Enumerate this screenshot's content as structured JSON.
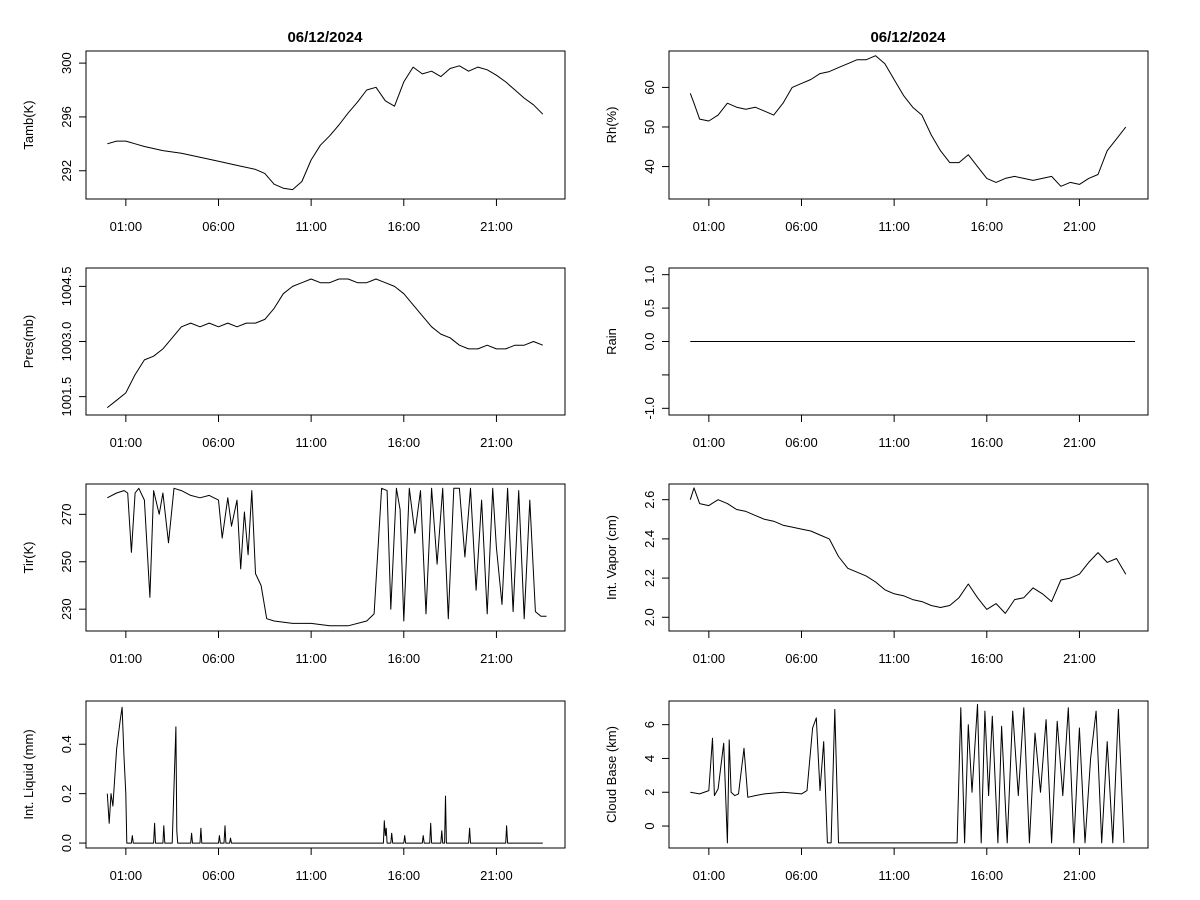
{
  "figure": {
    "column_titles": [
      "06/12/2024",
      "06/12/2024"
    ],
    "x_tick_labels": [
      "01:00",
      "06:00",
      "11:00",
      "16:00",
      "21:00"
    ]
  },
  "chart_data": [
    {
      "id": "tamb",
      "type": "line",
      "ylabel": "Tamb(K)",
      "x_range_hours": [
        -1.15,
        24.7
      ],
      "ylim": [
        289.9,
        300.9
      ],
      "yticks": [
        292,
        296,
        300
      ],
      "ytick_labels": [
        "292",
        "296",
        "300"
      ],
      "x_tick_hours": [
        1,
        6,
        11,
        16,
        21
      ],
      "series": [
        {
          "x": [
            0,
            0.5,
            1,
            1.5,
            2,
            3,
            4,
            5,
            6,
            7,
            8,
            8.5,
            9,
            9.5,
            10,
            10.5,
            11,
            11.5,
            12,
            12.5,
            13,
            13.5,
            14,
            14.5,
            15,
            15.5,
            16,
            16.5,
            17,
            17.5,
            18,
            18.5,
            19,
            19.5,
            20,
            20.5,
            21,
            21.5,
            22,
            22.5,
            23,
            23.5
          ],
          "y": [
            294.0,
            294.2,
            294.2,
            294.0,
            293.8,
            293.5,
            293.3,
            293.0,
            292.7,
            292.4,
            292.1,
            291.8,
            291.0,
            290.7,
            290.6,
            291.2,
            292.8,
            293.9,
            294.6,
            295.4,
            296.3,
            297.1,
            298.0,
            298.2,
            297.2,
            296.8,
            298.6,
            299.7,
            299.2,
            299.4,
            299.0,
            299.6,
            299.8,
            299.4,
            299.7,
            299.5,
            299.1,
            298.6,
            298.0,
            297.4,
            296.9,
            296.2
          ]
        }
      ]
    },
    {
      "id": "rh",
      "type": "line",
      "ylabel": "Rh(%)",
      "x_range_hours": [
        -1.15,
        24.7
      ],
      "ylim": [
        31.8,
        69.2
      ],
      "yticks": [
        40,
        50,
        60
      ],
      "ytick_labels": [
        "40",
        "50",
        "60"
      ],
      "x_tick_hours": [
        1,
        6,
        11,
        16,
        21
      ],
      "series": [
        {
          "x": [
            0,
            0.2,
            0.5,
            1,
            1.5,
            2,
            2.5,
            3,
            3.5,
            4,
            4.5,
            5,
            5.5,
            6,
            6.5,
            7,
            7.5,
            8,
            8.5,
            9,
            9.5,
            10,
            10.5,
            11,
            11.5,
            12,
            12.5,
            13,
            13.5,
            14,
            14.5,
            15,
            15.5,
            16,
            16.5,
            17,
            17.5,
            18,
            18.5,
            19,
            19.5,
            20,
            20.5,
            21,
            21.5,
            22,
            22.5,
            23,
            23.5
          ],
          "y": [
            58.5,
            56,
            52,
            51.5,
            53,
            56,
            55,
            54.5,
            55,
            54,
            53,
            56,
            60,
            61,
            62,
            63.5,
            64,
            65,
            66,
            67,
            67,
            68,
            66,
            62,
            58,
            55,
            53,
            48,
            44,
            41,
            41,
            43,
            40,
            37,
            36,
            37,
            37.5,
            37,
            36.5,
            37,
            37.5,
            35,
            36,
            35.5,
            37,
            38,
            44,
            47,
            50
          ]
        }
      ]
    },
    {
      "id": "pres",
      "type": "line",
      "ylabel": "Pres(mb)",
      "x_range_hours": [
        -1.15,
        24.7
      ],
      "ylim": [
        1001.0,
        1005.0
      ],
      "yticks": [
        1001.5,
        1003.0,
        1004.5
      ],
      "ytick_labels": [
        "1001.5",
        "1003.0",
        "1004.5"
      ],
      "x_tick_hours": [
        1,
        6,
        11,
        16,
        21
      ],
      "series": [
        {
          "x": [
            0,
            0.5,
            1,
            1.5,
            2,
            2.5,
            3,
            3.5,
            4,
            4.5,
            5,
            5.5,
            6,
            6.5,
            7,
            7.5,
            8,
            8.5,
            9,
            9.5,
            10,
            10.5,
            11,
            11.5,
            12,
            12.5,
            13,
            13.5,
            14,
            14.5,
            15,
            15.5,
            16,
            16.5,
            17,
            17.5,
            18,
            18.5,
            19,
            19.5,
            20,
            20.5,
            21,
            21.5,
            22,
            22.5,
            23,
            23.5
          ],
          "y": [
            1001.2,
            1001.4,
            1001.6,
            1002.1,
            1002.5,
            1002.6,
            1002.8,
            1003.1,
            1003.4,
            1003.5,
            1003.4,
            1003.5,
            1003.4,
            1003.5,
            1003.4,
            1003.5,
            1003.5,
            1003.6,
            1003.9,
            1004.3,
            1004.5,
            1004.6,
            1004.7,
            1004.6,
            1004.6,
            1004.7,
            1004.7,
            1004.6,
            1004.6,
            1004.7,
            1004.6,
            1004.5,
            1004.3,
            1004.0,
            1003.7,
            1003.4,
            1003.2,
            1003.1,
            1002.9,
            1002.8,
            1002.8,
            1002.9,
            1002.8,
            1002.8,
            1002.9,
            1002.9,
            1003.0,
            1002.9
          ]
        }
      ]
    },
    {
      "id": "rain",
      "type": "line",
      "ylabel": "Rain",
      "x_range_hours": [
        -1.15,
        24.7
      ],
      "ylim": [
        -1.1,
        1.1
      ],
      "yticks": [
        -1.0,
        -0.5,
        0.0,
        0.5,
        1.0
      ],
      "ytick_labels": [
        "-1.0",
        "",
        "0.0",
        "0.5",
        "1.0"
      ],
      "x_tick_hours": [
        1,
        6,
        11,
        16,
        21
      ],
      "series": [
        {
          "x": [
            0,
            24
          ],
          "y": [
            0,
            0
          ]
        }
      ]
    },
    {
      "id": "tir",
      "type": "line",
      "ylabel": "Tir(K)",
      "x_range_hours": [
        -1.15,
        24.7
      ],
      "ylim": [
        220.8,
        282.8
      ],
      "yticks": [
        230,
        250,
        270
      ],
      "ytick_labels": [
        "230",
        "250",
        "270"
      ],
      "x_tick_hours": [
        1,
        6,
        11,
        16,
        21
      ],
      "series": [
        {
          "x": [
            0,
            0.5,
            0.9,
            1.1,
            1.3,
            1.5,
            1.7,
            2.0,
            2.3,
            2.5,
            2.8,
            3.0,
            3.3,
            3.6,
            4.0,
            4.5,
            5,
            5.5,
            6,
            6.2,
            6.5,
            6.7,
            7.0,
            7.2,
            7.4,
            7.6,
            7.8,
            8.0,
            8.3,
            8.6,
            9,
            10,
            11,
            12,
            13,
            14,
            14.4,
            14.8,
            15.1,
            15.3,
            15.6,
            15.8,
            16.0,
            16.3,
            16.6,
            16.9,
            17.2,
            17.5,
            17.8,
            18.1,
            18.4,
            18.7,
            19.0,
            19.3,
            19.6,
            19.9,
            20.2,
            20.5,
            20.8,
            21.0,
            21.3,
            21.6,
            21.9,
            22.2,
            22.5,
            22.8,
            23.1,
            23.4,
            23.7
          ],
          "y": [
            277,
            279,
            280,
            279,
            254,
            279,
            281,
            276,
            235,
            280,
            270,
            279,
            258,
            281,
            280,
            278,
            277,
            278,
            276,
            260,
            277,
            265,
            276,
            247,
            271,
            253,
            280,
            245,
            240,
            226,
            225,
            224,
            224,
            223,
            223,
            225,
            228,
            281,
            280,
            230,
            281,
            272,
            225,
            281,
            262,
            280,
            228,
            281,
            249,
            281,
            226,
            281,
            281,
            252,
            281,
            238,
            276,
            228,
            281,
            256,
            232,
            281,
            229,
            280,
            226,
            276,
            229,
            227,
            227
          ]
        }
      ]
    },
    {
      "id": "vapor",
      "type": "line",
      "ylabel": "Int. Vapor (cm)",
      "x_range_hours": [
        -1.15,
        24.7
      ],
      "ylim": [
        1.93,
        2.68
      ],
      "yticks": [
        2.0,
        2.2,
        2.4,
        2.6
      ],
      "ytick_labels": [
        "2.0",
        "2.2",
        "2.4",
        "2.6"
      ],
      "x_tick_hours": [
        1,
        6,
        11,
        16,
        21
      ],
      "series": [
        {
          "x": [
            0,
            0.2,
            0.5,
            1,
            1.5,
            2,
            2.5,
            3,
            3.5,
            4,
            4.5,
            5,
            5.5,
            6,
            6.5,
            7,
            7.5,
            8,
            8.5,
            9,
            9.5,
            10,
            10.5,
            11,
            11.5,
            12,
            12.5,
            13,
            13.5,
            14,
            14.5,
            15,
            15.5,
            16,
            16.5,
            17,
            17.5,
            18,
            18.5,
            19,
            19.5,
            20,
            20.5,
            21,
            21.5,
            22,
            22.5,
            23,
            23.5
          ],
          "y": [
            2.6,
            2.66,
            2.58,
            2.57,
            2.6,
            2.58,
            2.55,
            2.54,
            2.52,
            2.5,
            2.49,
            2.47,
            2.46,
            2.45,
            2.44,
            2.42,
            2.4,
            2.31,
            2.25,
            2.23,
            2.21,
            2.18,
            2.14,
            2.12,
            2.11,
            2.09,
            2.08,
            2.06,
            2.05,
            2.06,
            2.1,
            2.17,
            2.1,
            2.04,
            2.07,
            2.02,
            2.09,
            2.1,
            2.15,
            2.12,
            2.08,
            2.19,
            2.2,
            2.22,
            2.28,
            2.33,
            2.28,
            2.3,
            2.22
          ]
        }
      ]
    },
    {
      "id": "liquid",
      "type": "line",
      "ylabel": "Int. Liquid (mm)",
      "x_range_hours": [
        -1.15,
        24.7
      ],
      "ylim": [
        -0.02,
        0.575
      ],
      "yticks": [
        0.0,
        0.2,
        0.4
      ],
      "ytick_labels": [
        "0.0",
        "0.2",
        "0.4"
      ],
      "x_tick_hours": [
        1,
        6,
        11,
        16,
        21
      ],
      "series": [
        {
          "x": [
            0,
            0.1,
            0.2,
            0.3,
            0.5,
            0.7,
            0.8,
            0.9,
            1.0,
            1.05,
            1.3,
            1.35,
            1.4,
            1.5,
            2.5,
            2.55,
            2.6,
            3.0,
            3.05,
            3.1,
            3.5,
            3.7,
            3.75,
            3.8,
            4.5,
            4.55,
            4.6,
            5.0,
            5.05,
            5.1,
            6.0,
            6.05,
            6.1,
            6.3,
            6.35,
            6.4,
            6.6,
            6.65,
            6.7,
            7.0,
            14.9,
            14.95,
            15.0,
            15.05,
            15.1,
            15.3,
            15.35,
            15.4,
            16.0,
            16.05,
            16.1,
            17.0,
            17.05,
            17.1,
            17.4,
            17.45,
            17.5,
            18.0,
            18.05,
            18.1,
            18.2,
            18.25,
            18.3,
            19.5,
            19.55,
            19.6,
            21.5,
            21.55,
            21.6,
            23.5
          ],
          "y": [
            0.2,
            0.08,
            0.2,
            0.15,
            0.38,
            0.5,
            0.55,
            0.35,
            0.2,
            0.0,
            0.0,
            0.03,
            0.0,
            0.0,
            0.0,
            0.08,
            0.0,
            0.0,
            0.07,
            0.0,
            0.0,
            0.47,
            0.05,
            0.0,
            0.0,
            0.04,
            0.0,
            0.0,
            0.06,
            0.0,
            0.0,
            0.03,
            0.0,
            0.0,
            0.07,
            0.0,
            0.0,
            0.02,
            0.0,
            0.0,
            0.0,
            0.09,
            0.03,
            0.06,
            0.0,
            0.0,
            0.04,
            0.0,
            0.0,
            0.03,
            0.0,
            0.0,
            0.03,
            0.0,
            0.0,
            0.08,
            0.0,
            0.0,
            0.05,
            0.0,
            0.0,
            0.19,
            0.0,
            0.0,
            0.06,
            0.0,
            0.0,
            0.07,
            0.0,
            0.0
          ]
        }
      ]
    },
    {
      "id": "cloudbase",
      "type": "line",
      "ylabel": "Cloud Base (km)",
      "x_range_hours": [
        -1.15,
        24.7
      ],
      "ylim": [
        -1.3,
        7.4
      ],
      "yticks": [
        0,
        2,
        4,
        6
      ],
      "ytick_labels": [
        "0",
        "2",
        "4",
        "6"
      ],
      "x_tick_hours": [
        1,
        6,
        11,
        16,
        21
      ],
      "series": [
        {
          "x": [
            0,
            0.5,
            1,
            1.2,
            1.3,
            1.5,
            1.8,
            2.0,
            2.1,
            2.2,
            2.4,
            2.6,
            2.9,
            3.1,
            3.5,
            4,
            5,
            6,
            6.3,
            6.6,
            6.8,
            7.0,
            7.2,
            7.4,
            7.6,
            7.8,
            8.0,
            8.1,
            8.3,
            8.6,
            9,
            10,
            11,
            12,
            13,
            14,
            14.2,
            14.4,
            14.6,
            14.8,
            15.0,
            15.2,
            15.5,
            15.7,
            15.9,
            16.1,
            16.3,
            16.6,
            16.8,
            17.1,
            17.4,
            17.7,
            18.0,
            18.3,
            18.6,
            18.9,
            19.2,
            19.5,
            19.8,
            20.1,
            20.4,
            20.7,
            21.0,
            21.3,
            21.6,
            21.9,
            22.2,
            22.5,
            22.8,
            23.1,
            23.4
          ],
          "y": [
            2.0,
            1.9,
            2.1,
            5.2,
            1.8,
            2.2,
            4.9,
            -1.0,
            5.1,
            2.0,
            1.8,
            1.9,
            4.6,
            1.7,
            1.8,
            1.9,
            2.0,
            1.9,
            2.1,
            5.8,
            6.4,
            2.1,
            5.0,
            -1.0,
            -1.0,
            6.9,
            -1.0,
            -1.0,
            -1.0,
            -1.0,
            -1.0,
            -1.0,
            -1.0,
            -1.0,
            -1.0,
            -1.0,
            -1.0,
            -1.0,
            7.0,
            -1.0,
            6.0,
            2.0,
            7.2,
            -1.0,
            6.8,
            1.8,
            6.5,
            -1.0,
            5.9,
            -1.0,
            6.8,
            1.8,
            7.0,
            -1.0,
            5.5,
            2.0,
            6.3,
            -1.0,
            6.2,
            1.8,
            7.0,
            -1.0,
            5.8,
            -1.0,
            4.0,
            6.8,
            -1.0,
            5.0,
            -1.0,
            6.9,
            -1.0
          ]
        }
      ]
    }
  ]
}
